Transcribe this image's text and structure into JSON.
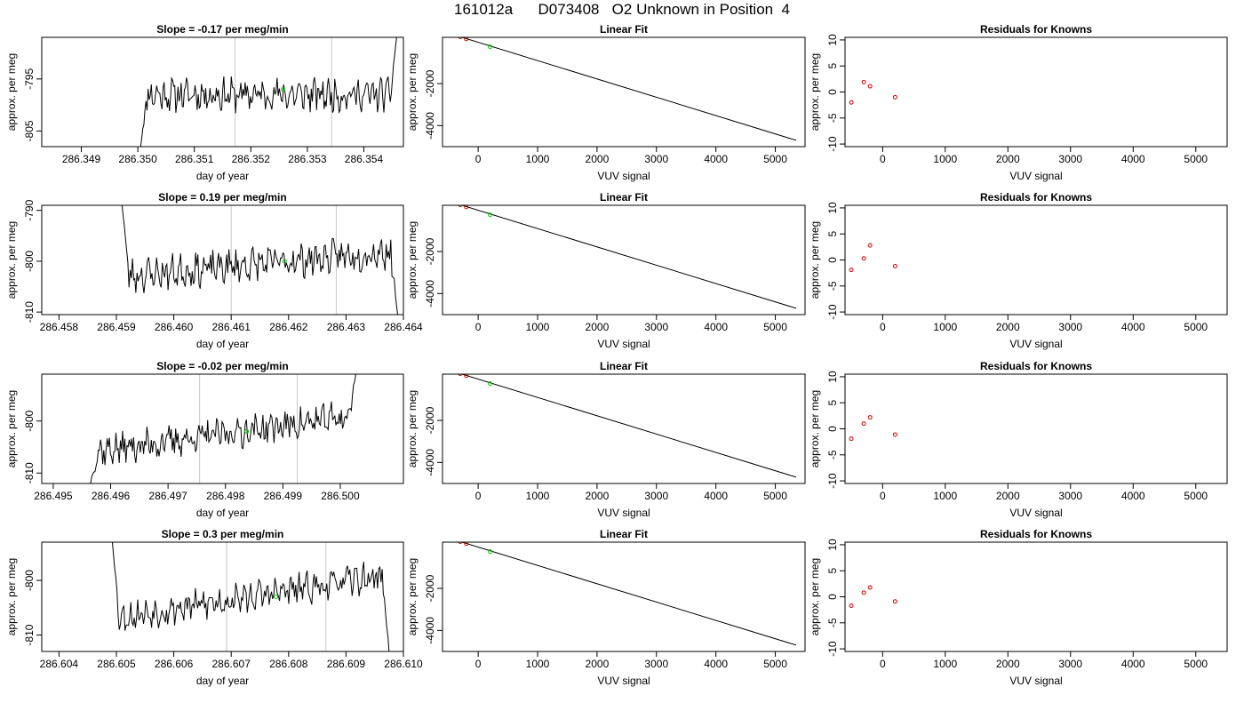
{
  "figure": {
    "title": "161012a      D073408   O2 Unknown in Position  4"
  },
  "chart_data": [
    {
      "type": "line",
      "panel": "timeseries",
      "row": 0,
      "title": "Slope =  -0.17  per meg/min",
      "xlabel": "day of year",
      "ylabel": "approx. per meg",
      "xlim": [
        286.3483,
        286.3547
      ],
      "ylim": [
        -808,
        -787
      ],
      "xticks": [
        286.349,
        286.35,
        286.351,
        286.352,
        286.353,
        286.354
      ],
      "xtick_labels": [
        "286.349",
        "286.350",
        "286.351",
        "286.352",
        "286.353",
        "286.354"
      ],
      "yticks": [
        -795,
        -805
      ],
      "ytick_labels": [
        "-795",
        "-805"
      ],
      "vlines": [
        286.35172,
        286.35343
      ],
      "green_point": [
        286.35257,
        -797.0
      ],
      "series": [
        {
          "x0": 286.35005,
          "x1": 286.35458,
          "baseline": -798,
          "start": -808,
          "end": -787,
          "noise": 2.5,
          "trend": 0,
          "seed": 11
        }
      ]
    },
    {
      "type": "line",
      "panel": "timeseries",
      "row": 1,
      "title": "Slope =  0.19  per meg/min",
      "xlabel": "day of year",
      "ylabel": "approx. per meg",
      "xlim": [
        286.4577,
        286.464
      ],
      "ylim": [
        -810.5,
        -789
      ],
      "xticks": [
        286.458,
        286.459,
        286.46,
        286.461,
        286.462,
        286.463,
        286.464
      ],
      "xtick_labels": [
        "286.458",
        "286.459",
        "286.460",
        "286.461",
        "286.462",
        "286.463",
        "286.464"
      ],
      "yticks": [
        -790,
        -800,
        -810
      ],
      "ytick_labels": [
        "-790",
        "-800",
        "-810"
      ],
      "vlines": [
        286.461,
        286.46283
      ],
      "green_point": [
        286.46193,
        -800.0
      ],
      "series": [
        {
          "x0": 286.4591,
          "x1": 286.4639,
          "baseline": -803,
          "start": -789,
          "end": -810.5,
          "noise": 2.6,
          "trend": 5,
          "seed": 23
        }
      ]
    },
    {
      "type": "line",
      "panel": "timeseries",
      "row": 2,
      "title": "Slope =  -0.02  per meg/min",
      "xlabel": "day of year",
      "ylabel": "approx. per meg",
      "xlim": [
        286.4948,
        286.5011
      ],
      "ylim": [
        -812,
        -791
      ],
      "xticks": [
        286.495,
        286.496,
        286.497,
        286.498,
        286.499,
        286.5
      ],
      "xtick_labels": [
        "286.495",
        "286.496",
        "286.497",
        "286.498",
        "286.499",
        "286.500"
      ],
      "yticks": [
        -800,
        -810
      ],
      "ytick_labels": [
        "-800",
        "-810"
      ],
      "vlines": [
        286.49755,
        286.49925
      ],
      "green_point": [
        286.49837,
        -802.0
      ],
      "series": [
        {
          "x0": 286.49565,
          "x1": 286.50027,
          "baseline": -806,
          "start": -812,
          "end": -791,
          "noise": 2.4,
          "trend": 7,
          "seed": 37
        }
      ]
    },
    {
      "type": "line",
      "panel": "timeseries",
      "row": 3,
      "title": "Slope =  0.3  per meg/min",
      "xlabel": "day of year",
      "ylabel": "approx. per meg",
      "xlim": [
        286.6037,
        286.61
      ],
      "ylim": [
        -813,
        -793
      ],
      "xticks": [
        286.604,
        286.605,
        286.606,
        286.607,
        286.608,
        286.609,
        286.61
      ],
      "xtick_labels": [
        "286.604",
        "286.605",
        "286.606",
        "286.607",
        "286.608",
        "286.609",
        "286.610"
      ],
      "yticks": [
        -800,
        -810
      ],
      "ytick_labels": [
        "-800",
        "-810"
      ],
      "vlines": [
        286.60692,
        286.60865
      ],
      "green_point": [
        286.60778,
        -803.0
      ],
      "series": [
        {
          "x0": 286.60493,
          "x1": 286.60975,
          "baseline": -807,
          "start": -793,
          "end": -813,
          "noise": 2.2,
          "trend": 8,
          "seed": 53
        }
      ]
    },
    {
      "type": "scatter",
      "panel": "fit",
      "row": 0,
      "title": "Linear Fit",
      "xlabel": "VUV signal",
      "ylabel": "approx. per meg",
      "xlim": [
        -600,
        5500
      ],
      "ylim": [
        -5000,
        200
      ],
      "xticks": [
        0,
        1000,
        2000,
        3000,
        4000,
        5000
      ],
      "xtick_labels": [
        "0",
        "1000",
        "2000",
        "3000",
        "4000",
        "5000"
      ],
      "yticks": [
        -2000,
        -4000
      ],
      "ytick_labels": [
        "-2000",
        "-4000"
      ],
      "line": [
        [
          -500,
          400
        ],
        [
          5350,
          -4700
        ]
      ],
      "knowns": [
        [
          -500,
          400
        ],
        [
          -300,
          220
        ],
        [
          -200,
          120
        ]
      ],
      "unknowns": [
        [
          200,
          -250
        ]
      ]
    },
    {
      "type": "scatter",
      "panel": "fit",
      "row": 1,
      "title": "Linear Fit",
      "xlabel": "VUV signal",
      "ylabel": "approx. per meg",
      "xlim": [
        -600,
        5500
      ],
      "ylim": [
        -5000,
        200
      ],
      "xticks": [
        0,
        1000,
        2000,
        3000,
        4000,
        5000
      ],
      "xtick_labels": [
        "0",
        "1000",
        "2000",
        "3000",
        "4000",
        "5000"
      ],
      "yticks": [
        -2000,
        -4000
      ],
      "ytick_labels": [
        "-2000",
        "-4000"
      ],
      "line": [
        [
          -500,
          400
        ],
        [
          5350,
          -4700
        ]
      ],
      "knowns": [
        [
          -500,
          400
        ],
        [
          -300,
          220
        ],
        [
          -200,
          120
        ]
      ],
      "unknowns": [
        [
          200,
          -250
        ]
      ]
    },
    {
      "type": "scatter",
      "panel": "fit",
      "row": 2,
      "title": "Linear Fit",
      "xlabel": "VUV signal",
      "ylabel": "approx. per meg",
      "xlim": [
        -600,
        5500
      ],
      "ylim": [
        -5000,
        200
      ],
      "xticks": [
        0,
        1000,
        2000,
        3000,
        4000,
        5000
      ],
      "xtick_labels": [
        "0",
        "1000",
        "2000",
        "3000",
        "4000",
        "5000"
      ],
      "yticks": [
        -2000,
        -4000
      ],
      "ytick_labels": [
        "-2000",
        "-4000"
      ],
      "line": [
        [
          -500,
          400
        ],
        [
          5350,
          -4700
        ]
      ],
      "knowns": [
        [
          -500,
          400
        ],
        [
          -300,
          220
        ],
        [
          -200,
          120
        ]
      ],
      "unknowns": [
        [
          200,
          -250
        ]
      ]
    },
    {
      "type": "scatter",
      "panel": "fit",
      "row": 3,
      "title": "Linear Fit",
      "xlabel": "VUV signal",
      "ylabel": "approx. per meg",
      "xlim": [
        -600,
        5500
      ],
      "ylim": [
        -5000,
        200
      ],
      "xticks": [
        0,
        1000,
        2000,
        3000,
        4000,
        5000
      ],
      "xtick_labels": [
        "0",
        "1000",
        "2000",
        "3000",
        "4000",
        "5000"
      ],
      "yticks": [
        -2000,
        -4000
      ],
      "ytick_labels": [
        "-2000",
        "-4000"
      ],
      "line": [
        [
          -500,
          400
        ],
        [
          5350,
          -4700
        ]
      ],
      "knowns": [
        [
          -500,
          400
        ],
        [
          -300,
          220
        ],
        [
          -200,
          120
        ]
      ],
      "unknowns": [
        [
          200,
          -250
        ]
      ]
    },
    {
      "type": "scatter",
      "panel": "residuals",
      "row": 0,
      "title": "Residuals for Knowns",
      "xlabel": "VUV signal",
      "ylabel": "approx. per meg",
      "xlim": [
        -600,
        5500
      ],
      "ylim": [
        -10.5,
        10.5
      ],
      "xticks": [
        0,
        1000,
        2000,
        3000,
        4000,
        5000
      ],
      "xtick_labels": [
        "0",
        "1000",
        "2000",
        "3000",
        "4000",
        "5000"
      ],
      "yticks": [
        10,
        5,
        0,
        -5,
        -10
      ],
      "ytick_labels": [
        "10",
        "5",
        "0",
        "-5",
        "-10"
      ],
      "points": [
        [
          -500,
          -2.0
        ],
        [
          -300,
          1.9
        ],
        [
          -200,
          1.1
        ],
        [
          200,
          -1.0
        ]
      ]
    },
    {
      "type": "scatter",
      "panel": "residuals",
      "row": 1,
      "title": "Residuals for Knowns",
      "xlabel": "VUV signal",
      "ylabel": "approx. per meg",
      "xlim": [
        -600,
        5500
      ],
      "ylim": [
        -10.5,
        10.5
      ],
      "xticks": [
        0,
        1000,
        2000,
        3000,
        4000,
        5000
      ],
      "xtick_labels": [
        "0",
        "1000",
        "2000",
        "3000",
        "4000",
        "5000"
      ],
      "yticks": [
        10,
        5,
        0,
        -5,
        -10
      ],
      "ytick_labels": [
        "10",
        "5",
        "0",
        "-5",
        "-10"
      ],
      "points": [
        [
          -500,
          -1.9
        ],
        [
          -300,
          0.3
        ],
        [
          -200,
          2.8
        ],
        [
          200,
          -1.2
        ]
      ]
    },
    {
      "type": "scatter",
      "panel": "residuals",
      "row": 2,
      "title": "Residuals for Knowns",
      "xlabel": "VUV signal",
      "ylabel": "approx. per meg",
      "xlim": [
        -600,
        5500
      ],
      "ylim": [
        -10.5,
        10.5
      ],
      "xticks": [
        0,
        1000,
        2000,
        3000,
        4000,
        5000
      ],
      "xtick_labels": [
        "0",
        "1000",
        "2000",
        "3000",
        "4000",
        "5000"
      ],
      "yticks": [
        10,
        5,
        0,
        -5,
        -10
      ],
      "ytick_labels": [
        "10",
        "5",
        "0",
        "-5",
        "-10"
      ],
      "points": [
        [
          -500,
          -1.9
        ],
        [
          -300,
          1.0
        ],
        [
          -200,
          2.2
        ],
        [
          200,
          -1.1
        ]
      ]
    },
    {
      "type": "scatter",
      "panel": "residuals",
      "row": 3,
      "title": "Residuals for Knowns",
      "xlabel": "VUV signal",
      "ylabel": "approx. per meg",
      "xlim": [
        -600,
        5500
      ],
      "ylim": [
        -10.5,
        10.5
      ],
      "xticks": [
        0,
        1000,
        2000,
        3000,
        4000,
        5000
      ],
      "xtick_labels": [
        "0",
        "1000",
        "2000",
        "3000",
        "4000",
        "5000"
      ],
      "yticks": [
        10,
        5,
        0,
        -5,
        -10
      ],
      "ytick_labels": [
        "10",
        "5",
        "0",
        "-5",
        "-10"
      ],
      "points": [
        [
          -500,
          -1.7
        ],
        [
          -300,
          0.8
        ],
        [
          -200,
          1.8
        ],
        [
          200,
          -0.9
        ]
      ]
    }
  ]
}
